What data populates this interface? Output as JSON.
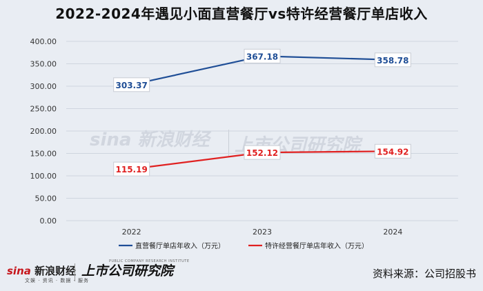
{
  "chart_data": {
    "type": "line",
    "title": "2022-2024年遇见小面直营餐厅vs特许经营餐厅单店收入",
    "categories": [
      "2022",
      "2023",
      "2024"
    ],
    "y_ticks": [
      "0.00",
      "50.00",
      "100.00",
      "150.00",
      "200.00",
      "250.00",
      "300.00",
      "350.00",
      "400.00"
    ],
    "ylim": [
      0,
      400
    ],
    "grid": true,
    "legend_position": "bottom",
    "series": [
      {
        "name": "直营餐厅单店年收入（万元）",
        "color": "#1f4e96",
        "values": [
          303.37,
          367.18,
          358.78
        ],
        "labels": [
          "303.37",
          "367.18",
          "358.78"
        ]
      },
      {
        "name": "特许经营餐厅单店年收入（万元）",
        "color": "#e02020",
        "values": [
          115.19,
          152.12,
          154.92
        ],
        "labels": [
          "115.19",
          "152.12",
          "154.92"
        ]
      }
    ]
  },
  "watermark": {
    "sina": "sina 新浪财经",
    "brand": "上市公司研究院"
  },
  "footer": {
    "sina_logo_mark": "sina",
    "sina_logo_text": "新浪财经",
    "sina_sub": "文娱 · 资讯 · 数据 · 服务",
    "brand": "上市公司研究院",
    "brand_sub": "PUBLIC COMPANY RESEARCH INSTITUTE",
    "source": "资料来源：公司招股书"
  }
}
